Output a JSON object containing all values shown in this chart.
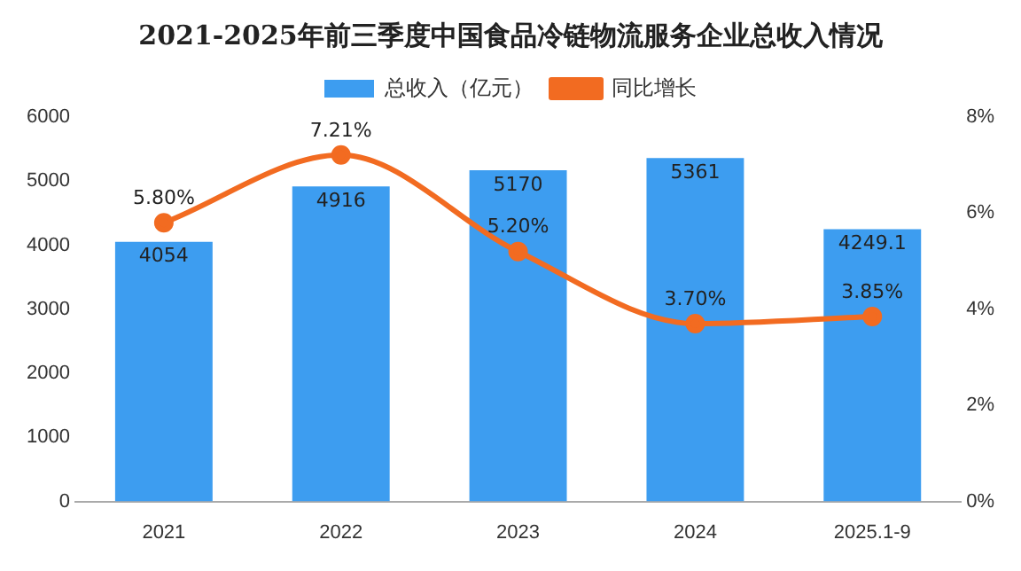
{
  "chart_data": {
    "type": "bar",
    "title": "2021-2025年前三季度中国食品冷链物流服务企业总收入情况",
    "categories": [
      "2021",
      "2022",
      "2023",
      "2024",
      "2025.1-9"
    ],
    "series": [
      {
        "name": "总收入（亿元）",
        "color": "#3d9df0",
        "values": [
          4054,
          4916,
          5170,
          5361,
          4249.1
        ],
        "value_labels": [
          "4054",
          "4916",
          "5170",
          "5361",
          "4249.1"
        ]
      },
      {
        "name": "同比增长",
        "type": "line",
        "axis": "y2",
        "color": "#f26b21",
        "values": [
          5.8,
          7.21,
          5.2,
          3.7,
          3.85
        ],
        "value_labels": [
          "5.80%",
          "7.21%",
          "5.20%",
          "3.70%",
          "3.85%"
        ]
      }
    ],
    "ylim": [
      0,
      6000
    ],
    "yticks": [
      0,
      1000,
      2000,
      3000,
      4000,
      5000,
      6000
    ],
    "y2lim": [
      0,
      8
    ],
    "y2ticks": [
      {
        "value": 0,
        "label": "0%"
      },
      {
        "value": 2,
        "label": "2%"
      },
      {
        "value": 4,
        "label": "4%"
      },
      {
        "value": 6,
        "label": "6%"
      },
      {
        "value": 8,
        "label": "8%"
      }
    ],
    "legend": "top",
    "marker": "circle",
    "line_style": "solid",
    "grid": false
  }
}
